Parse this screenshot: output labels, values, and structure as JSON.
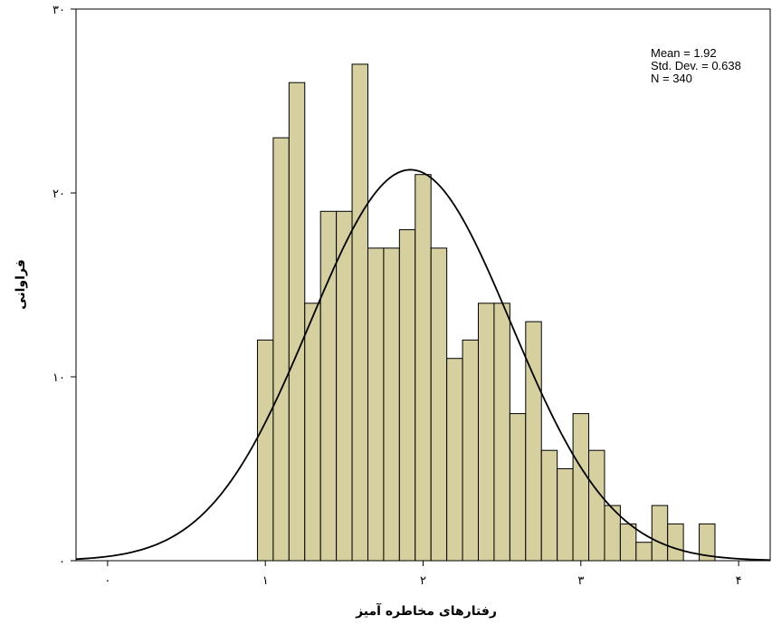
{
  "chart_data": {
    "type": "bar",
    "subtype": "histogram",
    "title": "",
    "xlabel": "رفتارهای مخاطره آمیز",
    "ylabel": "فراوانی",
    "xlim": [
      -0.2,
      4.2
    ],
    "ylim": [
      0,
      30
    ],
    "xticks": [
      0,
      1,
      2,
      3,
      4
    ],
    "xtick_labels": [
      "۰",
      "۱",
      "۲",
      "۳",
      "۴"
    ],
    "yticks": [
      0,
      10,
      20,
      30
    ],
    "ytick_labels": [
      "۰",
      "۱۰",
      "۲۰",
      "۳۰"
    ],
    "bin_width": 0.1,
    "bins": [
      {
        "x0": 0.95,
        "count": 12
      },
      {
        "x0": 1.05,
        "count": 23
      },
      {
        "x0": 1.15,
        "count": 26
      },
      {
        "x0": 1.25,
        "count": 14
      },
      {
        "x0": 1.35,
        "count": 19
      },
      {
        "x0": 1.45,
        "count": 19
      },
      {
        "x0": 1.55,
        "count": 27
      },
      {
        "x0": 1.65,
        "count": 17
      },
      {
        "x0": 1.75,
        "count": 17
      },
      {
        "x0": 1.85,
        "count": 18
      },
      {
        "x0": 1.95,
        "count": 21
      },
      {
        "x0": 2.05,
        "count": 17
      },
      {
        "x0": 2.15,
        "count": 11
      },
      {
        "x0": 2.25,
        "count": 12
      },
      {
        "x0": 2.35,
        "count": 14
      },
      {
        "x0": 2.45,
        "count": 14
      },
      {
        "x0": 2.55,
        "count": 8
      },
      {
        "x0": 2.65,
        "count": 13
      },
      {
        "x0": 2.75,
        "count": 6
      },
      {
        "x0": 2.85,
        "count": 5
      },
      {
        "x0": 2.95,
        "count": 8
      },
      {
        "x0": 3.05,
        "count": 6
      },
      {
        "x0": 3.15,
        "count": 3
      },
      {
        "x0": 3.25,
        "count": 2
      },
      {
        "x0": 3.35,
        "count": 1
      },
      {
        "x0": 3.45,
        "count": 3
      },
      {
        "x0": 3.55,
        "count": 2
      },
      {
        "x0": 3.65,
        "count": 0
      },
      {
        "x0": 3.75,
        "count": 2
      }
    ],
    "normal_curve": {
      "mean": 1.92,
      "sd": 0.638,
      "n": 340
    },
    "stats_box": {
      "mean_label": "Mean = 1.92",
      "sd_label": "Std. Dev. = 0.638",
      "n_label": "N = 340"
    },
    "grid": false,
    "colors": {
      "bar_fill": "#d6cf9f",
      "bar_stroke": "#000000",
      "curve": "#000000",
      "axis": "#000000"
    }
  }
}
